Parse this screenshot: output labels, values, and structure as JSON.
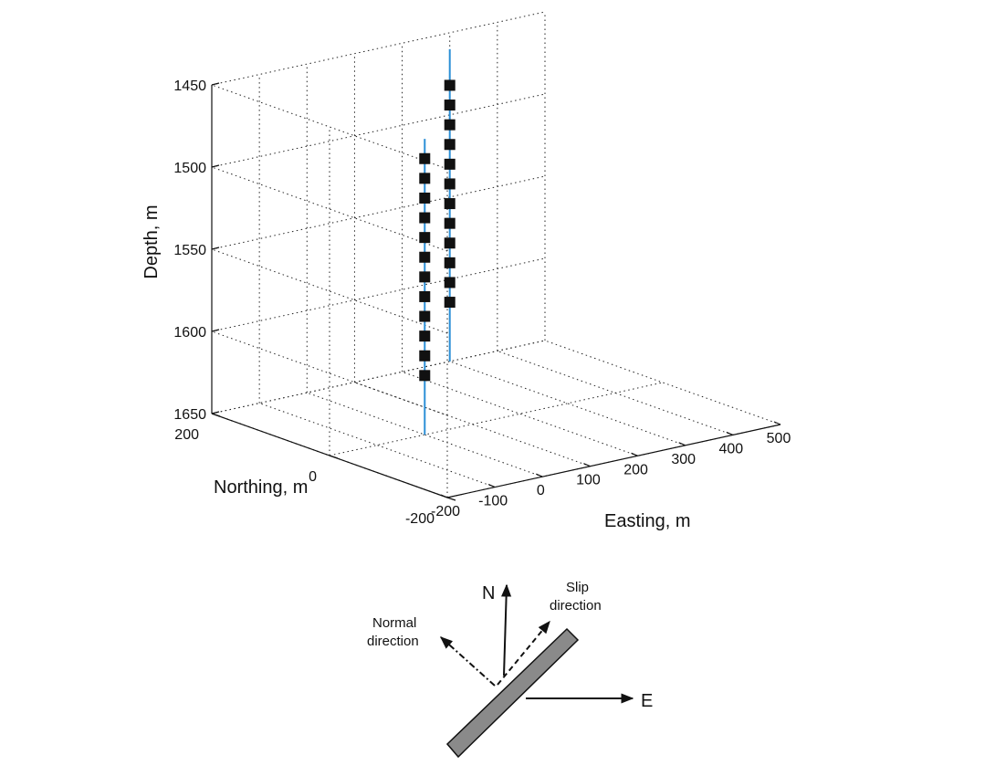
{
  "chart_data": {
    "type": "scatter",
    "projection": "3d",
    "xlabel": "Easting, m",
    "ylabel": "Northing, m",
    "zlabel": "Depth, m",
    "xlim": [
      -200,
      500
    ],
    "ylim": [
      -200,
      200
    ],
    "zlim": [
      1450,
      1650
    ],
    "z_reversed": true,
    "grid": true,
    "x_ticks": [
      "-200",
      "-100",
      "0",
      "100",
      "200",
      "300",
      "400",
      "500"
    ],
    "y_ticks": [
      "-200",
      "0",
      "200"
    ],
    "z_ticks": [
      "1450",
      "1500",
      "1550",
      "1600",
      "1650"
    ],
    "wells": [
      {
        "easting": 0,
        "northing": 0,
        "depth_top": 1470,
        "depth_bottom": 1650,
        "color": "#2b8fd6"
      },
      {
        "easting": 300,
        "northing": 200,
        "depth_top": 1460,
        "depth_bottom": 1650,
        "color": "#2b8fd6"
      }
    ],
    "series": [
      {
        "marker": "square",
        "color": "#111111",
        "x": [
          0,
          0,
          0,
          0,
          0,
          0,
          0,
          0,
          0,
          0,
          0,
          0
        ],
        "y": [
          0,
          0,
          0,
          0,
          0,
          0,
          0,
          0,
          0,
          0,
          0,
          0
        ],
        "z": [
          1482,
          1494,
          1506,
          1518,
          1530,
          1542,
          1554,
          1566,
          1578,
          1590,
          1602,
          1614
        ]
      },
      {
        "marker": "square",
        "color": "#111111",
        "x": [
          300,
          300,
          300,
          300,
          300,
          300,
          300,
          300,
          300,
          300,
          300,
          300
        ],
        "y": [
          200,
          200,
          200,
          200,
          200,
          200,
          200,
          200,
          200,
          200,
          200,
          200
        ],
        "z": [
          1482,
          1494,
          1506,
          1518,
          1530,
          1542,
          1554,
          1566,
          1578,
          1590,
          1602,
          1614
        ]
      }
    ]
  },
  "diagram": {
    "north_label": "N",
    "east_label": "E",
    "slip_label_line1": "Slip",
    "slip_label_line2": "direction",
    "normal_label_line1": "Normal",
    "normal_label_line2": "direction"
  }
}
